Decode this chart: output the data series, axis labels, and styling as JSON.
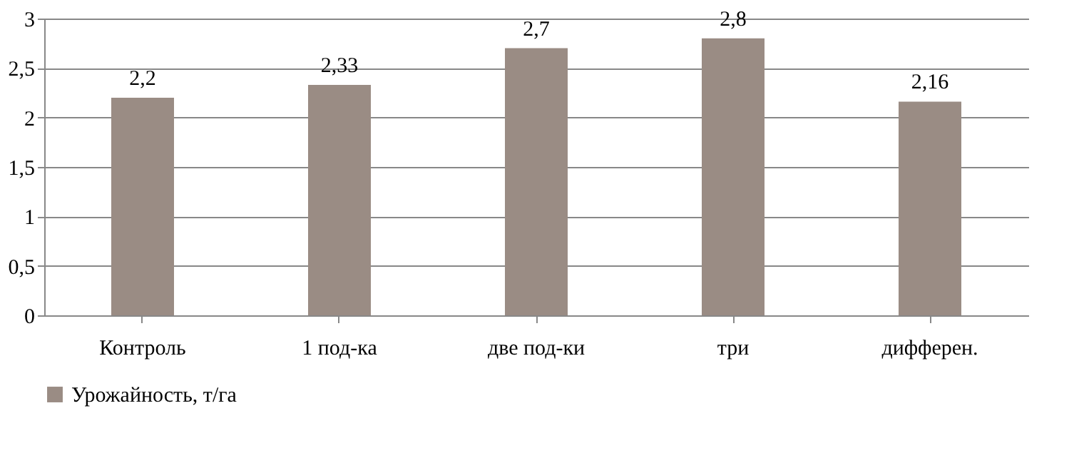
{
  "chart_data": {
    "type": "bar",
    "categories": [
      "Контроль",
      "1 под-ка",
      "две под-ки",
      "три",
      "дифферен."
    ],
    "series": [
      {
        "name": "Урожайность,  т/га",
        "color": "#9a8c84",
        "values": [
          2.2,
          2.33,
          2.7,
          2.8,
          2.16
        ],
        "value_labels": [
          "2,2",
          "2,33",
          "2,7",
          "2,8",
          "2,16"
        ]
      }
    ],
    "ylim": [
      0,
      3
    ],
    "yticks": [
      0,
      {
        "value": 0.5,
        "label": "0,5"
      },
      1,
      {
        "value": 1.5,
        "label": "1,5"
      },
      2,
      {
        "value": 2.5,
        "label": "2,5"
      },
      3
    ],
    "grid": "y",
    "legend": "bottom"
  }
}
